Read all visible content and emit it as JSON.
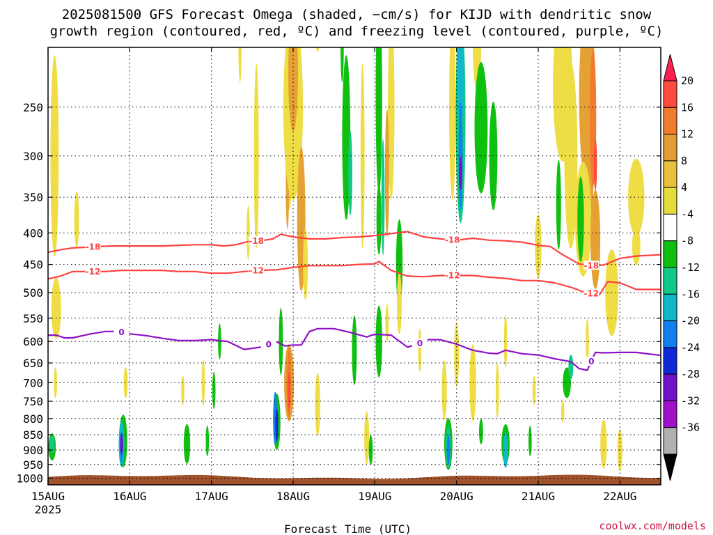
{
  "chart_data": {
    "type": "heatmap",
    "title_line1": "2025081500 GFS Forecast Omega (shaded, −cm/s) for KIJD with dendritic snow",
    "title_line2": "growth region (contoured, red, ºC) and freezing level (contoured, purple, ºC)",
    "xlabel": "Forecast Time (UTC)",
    "ylabel": "",
    "credit": "coolwx.com/models",
    "x_ticks": [
      "15AUG",
      "16AUG",
      "17AUG",
      "18AUG",
      "19AUG",
      "20AUG",
      "21AUG",
      "22AUG"
    ],
    "x_year": "2025",
    "x_range_days": [
      0,
      7.5
    ],
    "y_ticks": [
      250,
      300,
      350,
      400,
      450,
      500,
      550,
      600,
      650,
      700,
      750,
      800,
      850,
      900,
      950,
      1000
    ],
    "y_range_hpa": [
      200,
      1025
    ],
    "grid": true,
    "colorbar": {
      "labels": [
        "20",
        "16",
        "12",
        "8",
        "4",
        "-4",
        "-8",
        "-12",
        "-16",
        "-20",
        "-24",
        "-28",
        "-32",
        "-36"
      ],
      "colors": [
        "#ff1f52",
        "#ff4a3c",
        "#f07c2c",
        "#e39d32",
        "#e7c13c",
        "#e6dc3c",
        "#ffffff",
        "#10c010",
        "#10c888",
        "#10b8c8",
        "#1080f0",
        "#1028d8",
        "#7010c8",
        "#a010c8",
        "#b0b0b0",
        "#000000"
      ]
    },
    "contours": [
      {
        "value": "-18",
        "color": "#ff4040",
        "x": [
          0,
          0.15,
          0.3,
          0.45,
          0.6,
          0.8,
          1.0,
          1.2,
          1.4,
          1.6,
          1.8,
          2.0,
          2.15,
          2.3,
          2.45,
          2.6,
          2.75,
          2.85,
          3.0,
          3.2,
          3.4,
          3.6,
          3.8,
          4.0,
          4.2,
          4.4,
          4.6,
          4.8,
          5.0,
          5.2,
          5.4,
          5.6,
          5.8,
          6.0,
          6.15,
          6.3,
          6.5,
          6.65,
          6.8,
          7.0,
          7.2,
          7.5
        ],
        "p": [
          430,
          426,
          423,
          422,
          421,
          420,
          420,
          420,
          420,
          419,
          418,
          418,
          420,
          418,
          413,
          412,
          409,
          402,
          406,
          409,
          409,
          407,
          406,
          404,
          401,
          398,
          406,
          409,
          411,
          408,
          411,
          412,
          414,
          419,
          421,
          434,
          449,
          452,
          451,
          440,
          436,
          434
        ]
      },
      {
        "value": "-12",
        "color": "#ff4040",
        "x": [
          0,
          0.15,
          0.3,
          0.5,
          0.7,
          0.9,
          1.0,
          1.2,
          1.4,
          1.6,
          1.8,
          2.0,
          2.2,
          2.4,
          2.6,
          2.8,
          3.0,
          3.2,
          3.4,
          3.6,
          3.8,
          4.0,
          4.05,
          4.2,
          4.4,
          4.6,
          4.8,
          5.0,
          5.2,
          5.4,
          5.6,
          5.8,
          6.0,
          6.2,
          6.4,
          6.6,
          6.75,
          6.85,
          7.0,
          7.2,
          7.5
        ],
        "p": [
          475,
          470,
          462,
          462,
          462,
          460,
          460,
          460,
          460,
          462,
          462,
          465,
          465,
          462,
          460,
          459,
          455,
          452,
          452,
          452,
          450,
          449,
          445,
          460,
          470,
          471,
          469,
          469,
          469,
          472,
          474,
          478,
          478,
          482,
          490,
          501,
          504,
          480,
          482,
          494,
          494
        ]
      },
      {
        "value": "0",
        "color": "#9010c8",
        "x": [
          0,
          0.1,
          0.2,
          0.3,
          0.5,
          0.7,
          0.85,
          1.0,
          1.2,
          1.4,
          1.6,
          1.8,
          2.0,
          2.2,
          2.4,
          2.6,
          2.8,
          2.9,
          3.0,
          3.1,
          3.2,
          3.3,
          3.5,
          3.7,
          3.9,
          4.0,
          4.2,
          4.4,
          4.55,
          4.6,
          4.8,
          5.0,
          5.2,
          5.4,
          5.5,
          5.6,
          5.8,
          6.0,
          6.2,
          6.4,
          6.5,
          6.6,
          6.7,
          6.8,
          7.0,
          7.2,
          7.5
        ],
        "p": [
          586,
          586,
          592,
          592,
          584,
          578,
          578,
          583,
          587,
          593,
          598,
          598,
          596,
          600,
          618,
          613,
          601,
          610,
          608,
          608,
          578,
          572,
          572,
          580,
          590,
          584,
          586,
          613,
          604,
          596,
          596,
          606,
          620,
          627,
          628,
          620,
          628,
          631,
          640,
          647,
          664,
          668,
          625,
          626,
          625,
          625,
          632
        ]
      }
    ]
  }
}
